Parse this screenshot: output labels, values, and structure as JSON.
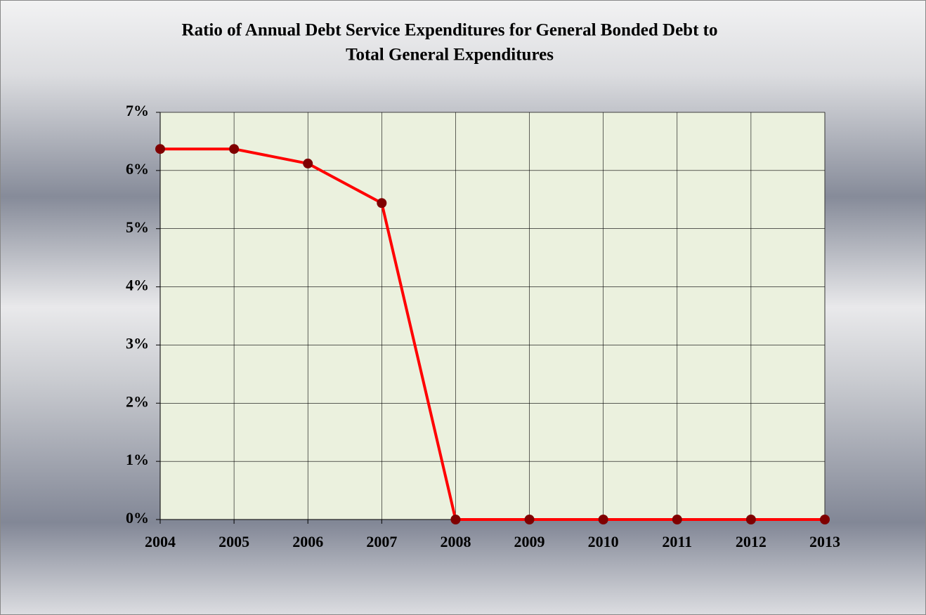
{
  "chart_data": {
    "type": "line",
    "title": [
      "Ratio of Annual Debt Service Expenditures for General Bonded Debt to",
      "Total General Expenditures"
    ],
    "x": [
      2004,
      2005,
      2006,
      2007,
      2008,
      2009,
      2010,
      2011,
      2012,
      2013
    ],
    "xlim": [
      2004,
      2013
    ],
    "xticks": [
      2004,
      2005,
      2006,
      2007,
      2008,
      2009,
      2010,
      2011,
      2012,
      2013
    ],
    "series": [
      {
        "name": "Ratio",
        "color": "#ff0000",
        "marker_color": "#7f0000",
        "values": [
          6.37,
          6.37,
          6.12,
          5.44,
          0,
          0,
          0,
          0,
          0,
          0
        ]
      }
    ],
    "ylim": [
      0,
      7
    ],
    "yticks": [
      {
        "value": 0,
        "label": "0%"
      },
      {
        "value": 1,
        "label": "1%"
      },
      {
        "value": 2,
        "label": "2%"
      },
      {
        "value": 3,
        "label": "3%"
      },
      {
        "value": 4,
        "label": "4%"
      },
      {
        "value": 5,
        "label": "5%"
      },
      {
        "value": 6,
        "label": "6%"
      },
      {
        "value": 7,
        "label": "7%"
      }
    ],
    "grid": true,
    "plot_background": "#ebf1de"
  }
}
